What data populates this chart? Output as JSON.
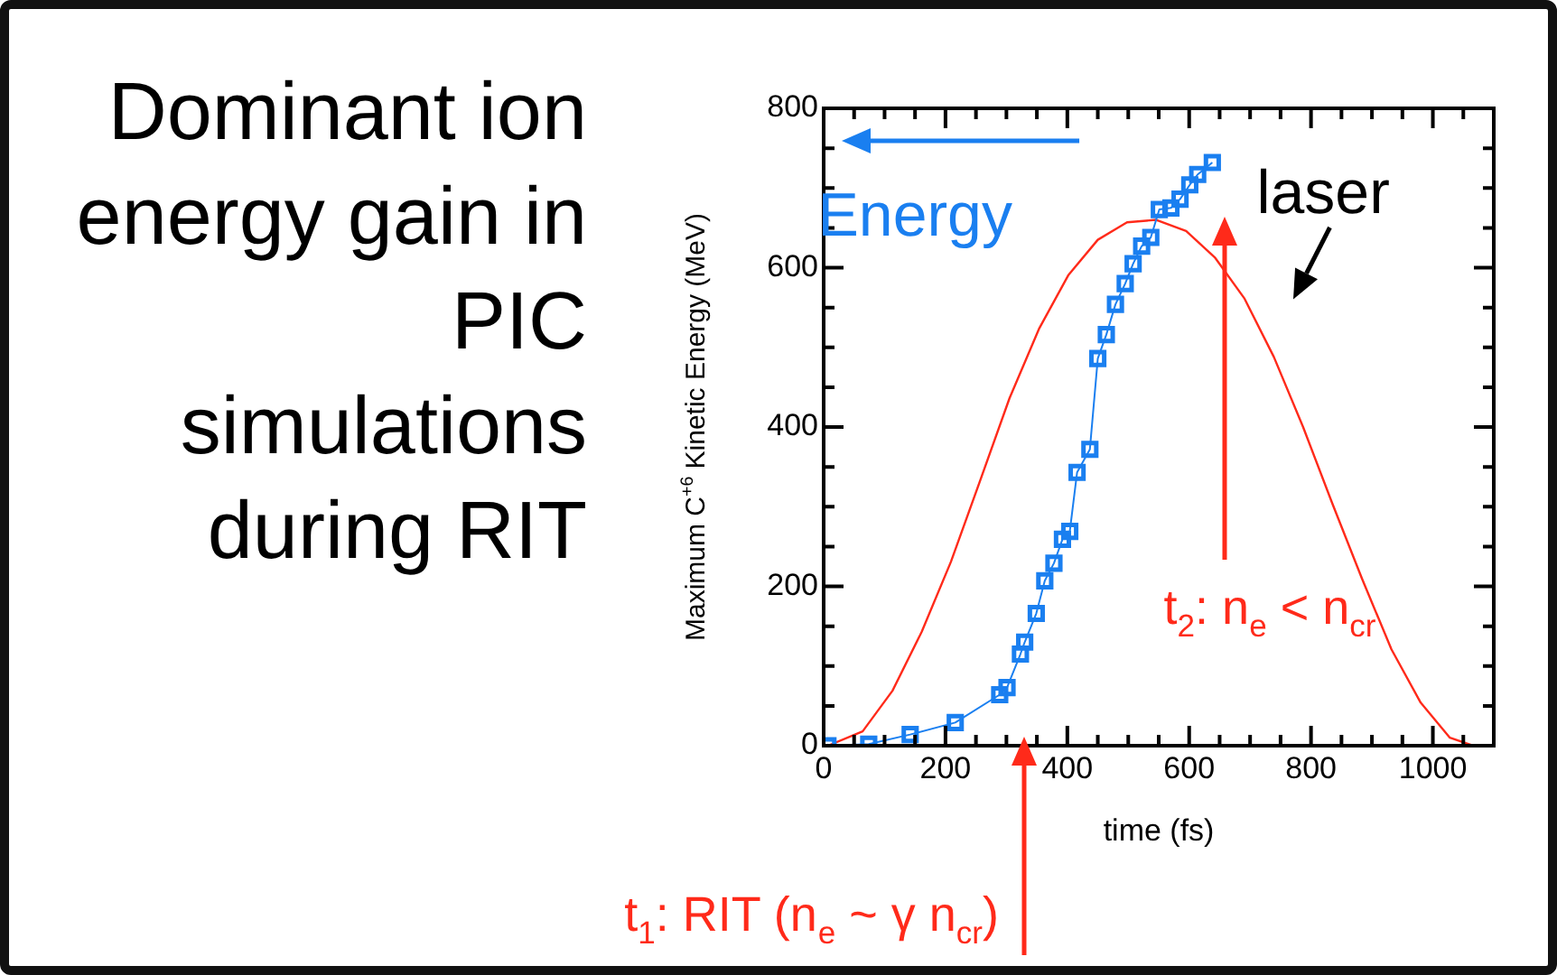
{
  "chart_data": {
    "type": "line",
    "title": "Dominant ion energy gain in PIC simulations during RIT",
    "xlabel": "time (fs)",
    "ylabel": "Maximum C$^{+6}$ Kinetic Energy (MeV)",
    "xlim": [
      0,
      1100
    ],
    "ylim": [
      0,
      800
    ],
    "xticks": [
      0,
      {
        "value": 50,
        "label": null
      },
      {
        "value": 100,
        "label": null
      },
      {
        "value": 150,
        "label": null
      },
      200,
      {
        "value": 250,
        "label": null
      },
      {
        "value": 300,
        "label": null
      },
      {
        "value": 350,
        "label": null
      },
      400,
      {
        "value": 450,
        "label": null
      },
      {
        "value": 500,
        "label": null
      },
      {
        "value": 550,
        "label": null
      },
      600,
      {
        "value": 650,
        "label": null
      },
      {
        "value": 700,
        "label": null
      },
      {
        "value": 750,
        "label": null
      },
      800,
      {
        "value": 850,
        "label": null
      },
      {
        "value": 900,
        "label": null
      },
      {
        "value": 950,
        "label": null
      },
      1000,
      {
        "value": 1050,
        "label": null
      }
    ],
    "yticks": [
      0,
      {
        "value": 50,
        "label": null
      },
      {
        "value": 100,
        "label": null
      },
      {
        "value": 150,
        "label": null
      },
      200,
      {
        "value": 250,
        "label": null
      },
      {
        "value": 300,
        "label": null
      },
      {
        "value": 350,
        "label": null
      },
      400,
      {
        "value": 450,
        "label": null
      },
      {
        "value": 500,
        "label": null
      },
      {
        "value": 550,
        "label": null
      },
      600,
      {
        "value": 650,
        "label": null
      },
      {
        "value": 700,
        "label": null
      },
      {
        "value": 750,
        "label": null
      },
      800
    ],
    "grid": false,
    "legend": "top left",
    "series": [
      {
        "name": "Energy",
        "color": "#1a7ff0",
        "marker": "square",
        "x": [
          7,
          74,
          142,
          216,
          289,
          301,
          323,
          330,
          349,
          363,
          378,
          392,
          404,
          416,
          437,
          450,
          464,
          479,
          495,
          508,
          522,
          537,
          551,
          570,
          585,
          601,
          614,
          638
        ],
        "values": [
          0,
          2,
          14,
          29,
          64,
          73,
          115,
          130,
          166,
          207,
          229,
          259,
          269,
          343,
          372,
          486,
          516,
          554,
          580,
          605,
          627,
          638,
          673,
          675,
          686,
          704,
          717,
          732
        ]
      },
      {
        "name": "laser",
        "color": "#ff2a1a",
        "marker": "none",
        "x": [
          7,
          64,
          113,
          161,
          209,
          257,
          305,
          354,
          402,
          450,
          498,
          546,
          595,
          642,
          691,
          739,
          787,
          835,
          884,
          932,
          980,
          1028,
          1066
        ],
        "values": [
          0,
          18,
          69,
          143,
          231,
          333,
          436,
          524,
          591,
          635,
          657,
          660,
          646,
          613,
          561,
          488,
          400,
          304,
          209,
          121,
          54,
          10,
          0
        ]
      }
    ],
    "annotations": [
      "t$_{1}$: RIT (n$_{e}$ ~ γ n$_{cr}$)",
      "t$_{2}$: n$_{e}$ < n$_{cr}$"
    ]
  }
}
